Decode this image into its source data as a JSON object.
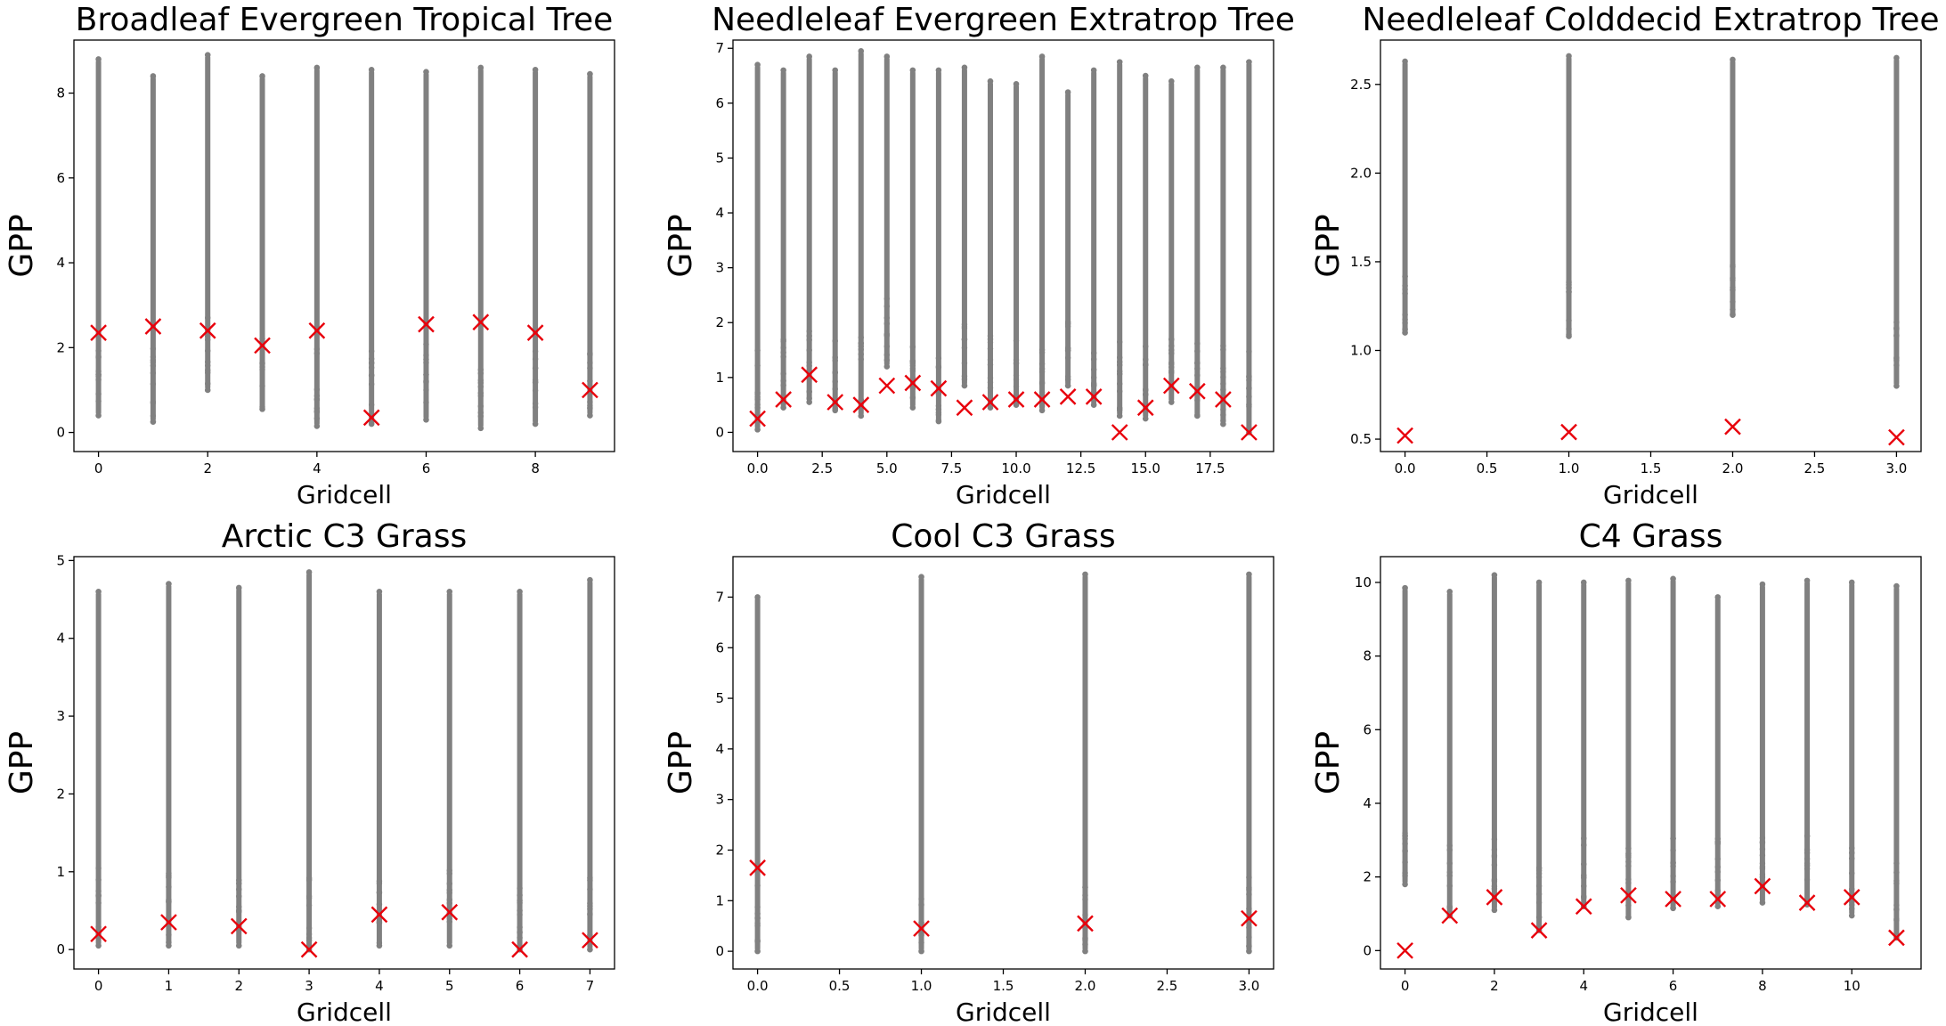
{
  "colors": {
    "scatter": "#808080",
    "mean_marker": "#e8000b",
    "axes": "#000000"
  },
  "chart_data": [
    {
      "type": "scatter",
      "title": "Broadleaf Evergreen Tropical Tree",
      "xlabel": "Gridcell",
      "ylabel": "GPP",
      "xlim": [
        -0.45,
        9.45
      ],
      "ylim": [
        -0.45,
        9.25
      ],
      "xticks": [
        0,
        2,
        4,
        6,
        8
      ],
      "xtick_labels": [
        "0",
        "2",
        "4",
        "6",
        "8"
      ],
      "yticks": [
        0,
        2,
        4,
        6,
        8
      ],
      "ytick_labels": [
        "0",
        "2",
        "4",
        "6",
        "8"
      ],
      "grid": false,
      "series": [
        {
          "kind": "range",
          "x": [
            0,
            1,
            2,
            3,
            4,
            5,
            6,
            7,
            8,
            9
          ],
          "min": [
            0.4,
            0.25,
            1.0,
            0.55,
            0.15,
            0.2,
            0.3,
            0.1,
            0.2,
            0.4
          ],
          "max": [
            8.8,
            8.4,
            8.9,
            8.4,
            8.6,
            8.55,
            8.5,
            8.6,
            8.55,
            8.45
          ]
        },
        {
          "kind": "mean",
          "marker": "x",
          "x": [
            0,
            1,
            2,
            3,
            4,
            5,
            6,
            7,
            8,
            9
          ],
          "y": [
            2.35,
            2.5,
            2.4,
            2.05,
            2.4,
            0.35,
            2.55,
            2.6,
            2.35,
            1.0
          ]
        }
      ]
    },
    {
      "type": "scatter",
      "title": "Needleleaf Evergreen Extratrop Tree",
      "xlabel": "Gridcell",
      "ylabel": "GPP",
      "xlim": [
        -0.95,
        19.95
      ],
      "ylim": [
        -0.35,
        7.15
      ],
      "xticks": [
        0,
        2.5,
        5,
        7.5,
        10,
        12.5,
        15,
        17.5
      ],
      "xtick_labels": [
        "0.0",
        "2.5",
        "5.0",
        "7.5",
        "10.0",
        "12.5",
        "15.0",
        "17.5"
      ],
      "yticks": [
        0,
        1,
        2,
        3,
        4,
        5,
        6,
        7
      ],
      "ytick_labels": [
        "0",
        "1",
        "2",
        "3",
        "4",
        "5",
        "6",
        "7"
      ],
      "grid": false,
      "series": [
        {
          "kind": "range",
          "x": [
            0,
            1,
            2,
            3,
            4,
            5,
            6,
            7,
            8,
            9,
            10,
            11,
            12,
            13,
            14,
            15,
            16,
            17,
            18,
            19
          ],
          "min": [
            0.05,
            0.45,
            0.55,
            0.4,
            0.3,
            1.2,
            0.45,
            0.2,
            0.85,
            0.45,
            0.5,
            0.4,
            0.85,
            0.5,
            0.3,
            0.25,
            0.55,
            0.3,
            0.15,
            0.0
          ],
          "max": [
            6.7,
            6.6,
            6.85,
            6.6,
            6.95,
            6.85,
            6.6,
            6.6,
            6.65,
            6.4,
            6.35,
            6.85,
            6.2,
            6.6,
            6.75,
            6.5,
            6.4,
            6.65,
            6.65,
            6.75
          ]
        },
        {
          "kind": "mean",
          "marker": "x",
          "x": [
            0,
            1,
            2,
            3,
            4,
            5,
            6,
            7,
            8,
            9,
            10,
            11,
            12,
            13,
            14,
            15,
            16,
            17,
            18,
            19
          ],
          "y": [
            0.25,
            0.6,
            1.05,
            0.55,
            0.5,
            0.85,
            0.9,
            0.8,
            0.45,
            0.55,
            0.6,
            0.6,
            0.65,
            0.65,
            0.0,
            0.45,
            0.85,
            0.75,
            0.6,
            0.0
          ]
        }
      ]
    },
    {
      "type": "scatter",
      "title": "Needleleaf Colddecid Extratrop Tree",
      "xlabel": "Gridcell",
      "ylabel": "GPP",
      "xlim": [
        -0.15,
        3.15
      ],
      "ylim": [
        0.43,
        2.75
      ],
      "xticks": [
        0,
        0.5,
        1,
        1.5,
        2,
        2.5,
        3
      ],
      "xtick_labels": [
        "0.0",
        "0.5",
        "1.0",
        "1.5",
        "2.0",
        "2.5",
        "3.0"
      ],
      "yticks": [
        0.5,
        1.0,
        1.5,
        2.0,
        2.5
      ],
      "ytick_labels": [
        "0.5",
        "1.0",
        "1.5",
        "2.0",
        "2.5"
      ],
      "grid": false,
      "series": [
        {
          "kind": "range",
          "x": [
            0,
            1,
            2,
            3
          ],
          "min": [
            1.1,
            1.08,
            1.2,
            0.8
          ],
          "max": [
            2.63,
            2.66,
            2.64,
            2.65
          ]
        },
        {
          "kind": "mean",
          "marker": "x",
          "x": [
            0,
            1,
            2,
            3
          ],
          "y": [
            0.52,
            0.54,
            0.57,
            0.51
          ]
        }
      ]
    },
    {
      "type": "scatter",
      "title": "Arctic C3 Grass",
      "xlabel": "Gridcell",
      "ylabel": "GPP",
      "xlim": [
        -0.35,
        7.35
      ],
      "ylim": [
        -0.25,
        5.05
      ],
      "xticks": [
        0,
        1,
        2,
        3,
        4,
        5,
        6,
        7
      ],
      "xtick_labels": [
        "0",
        "1",
        "2",
        "3",
        "4",
        "5",
        "6",
        "7"
      ],
      "yticks": [
        0,
        1,
        2,
        3,
        4,
        5
      ],
      "ytick_labels": [
        "0",
        "1",
        "2",
        "3",
        "4",
        "5"
      ],
      "grid": false,
      "series": [
        {
          "kind": "range",
          "x": [
            0,
            1,
            2,
            3,
            4,
            5,
            6,
            7
          ],
          "min": [
            0.05,
            0.05,
            0.05,
            0.0,
            0.05,
            0.05,
            0.0,
            0.0
          ],
          "max": [
            4.6,
            4.7,
            4.65,
            4.85,
            4.6,
            4.6,
            4.6,
            4.75
          ]
        },
        {
          "kind": "mean",
          "marker": "x",
          "x": [
            0,
            1,
            2,
            3,
            4,
            5,
            6,
            7
          ],
          "y": [
            0.2,
            0.35,
            0.3,
            0.0,
            0.45,
            0.48,
            0.0,
            0.12
          ]
        }
      ]
    },
    {
      "type": "scatter",
      "title": "Cool C3 Grass",
      "xlabel": "Gridcell",
      "ylabel": "GPP",
      "xlim": [
        -0.15,
        3.15
      ],
      "ylim": [
        -0.35,
        7.8
      ],
      "xticks": [
        0,
        0.5,
        1,
        1.5,
        2,
        2.5,
        3
      ],
      "xtick_labels": [
        "0.0",
        "0.5",
        "1.0",
        "1.5",
        "2.0",
        "2.5",
        "3.0"
      ],
      "yticks": [
        0,
        1,
        2,
        3,
        4,
        5,
        6,
        7
      ],
      "ytick_labels": [
        "0",
        "1",
        "2",
        "3",
        "4",
        "5",
        "6",
        "7"
      ],
      "grid": false,
      "series": [
        {
          "kind": "range",
          "x": [
            0,
            1,
            2,
            3
          ],
          "min": [
            0.0,
            0.0,
            0.0,
            0.0
          ],
          "max": [
            7.0,
            7.4,
            7.45,
            7.45
          ]
        },
        {
          "kind": "mean",
          "marker": "x",
          "x": [
            0,
            1,
            2,
            3
          ],
          "y": [
            1.65,
            0.45,
            0.55,
            0.65
          ]
        }
      ]
    },
    {
      "type": "scatter",
      "title": "C4 Grass",
      "xlabel": "Gridcell",
      "ylabel": "GPP",
      "xlim": [
        -0.55,
        11.55
      ],
      "ylim": [
        -0.5,
        10.7
      ],
      "xticks": [
        0,
        2,
        4,
        6,
        8,
        10
      ],
      "xtick_labels": [
        "0",
        "2",
        "4",
        "6",
        "8",
        "10"
      ],
      "yticks": [
        0,
        2,
        4,
        6,
        8,
        10
      ],
      "ytick_labels": [
        "0",
        "2",
        "4",
        "6",
        "8",
        "10"
      ],
      "grid": false,
      "series": [
        {
          "kind": "range",
          "x": [
            0,
            1,
            2,
            3,
            4,
            5,
            6,
            7,
            8,
            9,
            10,
            11
          ],
          "min": [
            1.8,
            0.95,
            1.1,
            0.55,
            1.2,
            0.9,
            1.15,
            1.2,
            1.3,
            1.25,
            0.95,
            0.35
          ],
          "max": [
            9.85,
            9.75,
            10.2,
            10.0,
            10.0,
            10.05,
            10.1,
            9.6,
            9.95,
            10.05,
            10.0,
            9.9
          ]
        },
        {
          "kind": "mean",
          "marker": "x",
          "x": [
            0,
            1,
            2,
            3,
            4,
            5,
            6,
            7,
            8,
            9,
            10,
            11
          ],
          "y": [
            0.0,
            0.95,
            1.45,
            0.55,
            1.2,
            1.5,
            1.4,
            1.4,
            1.75,
            1.3,
            1.45,
            0.35
          ]
        }
      ]
    }
  ]
}
